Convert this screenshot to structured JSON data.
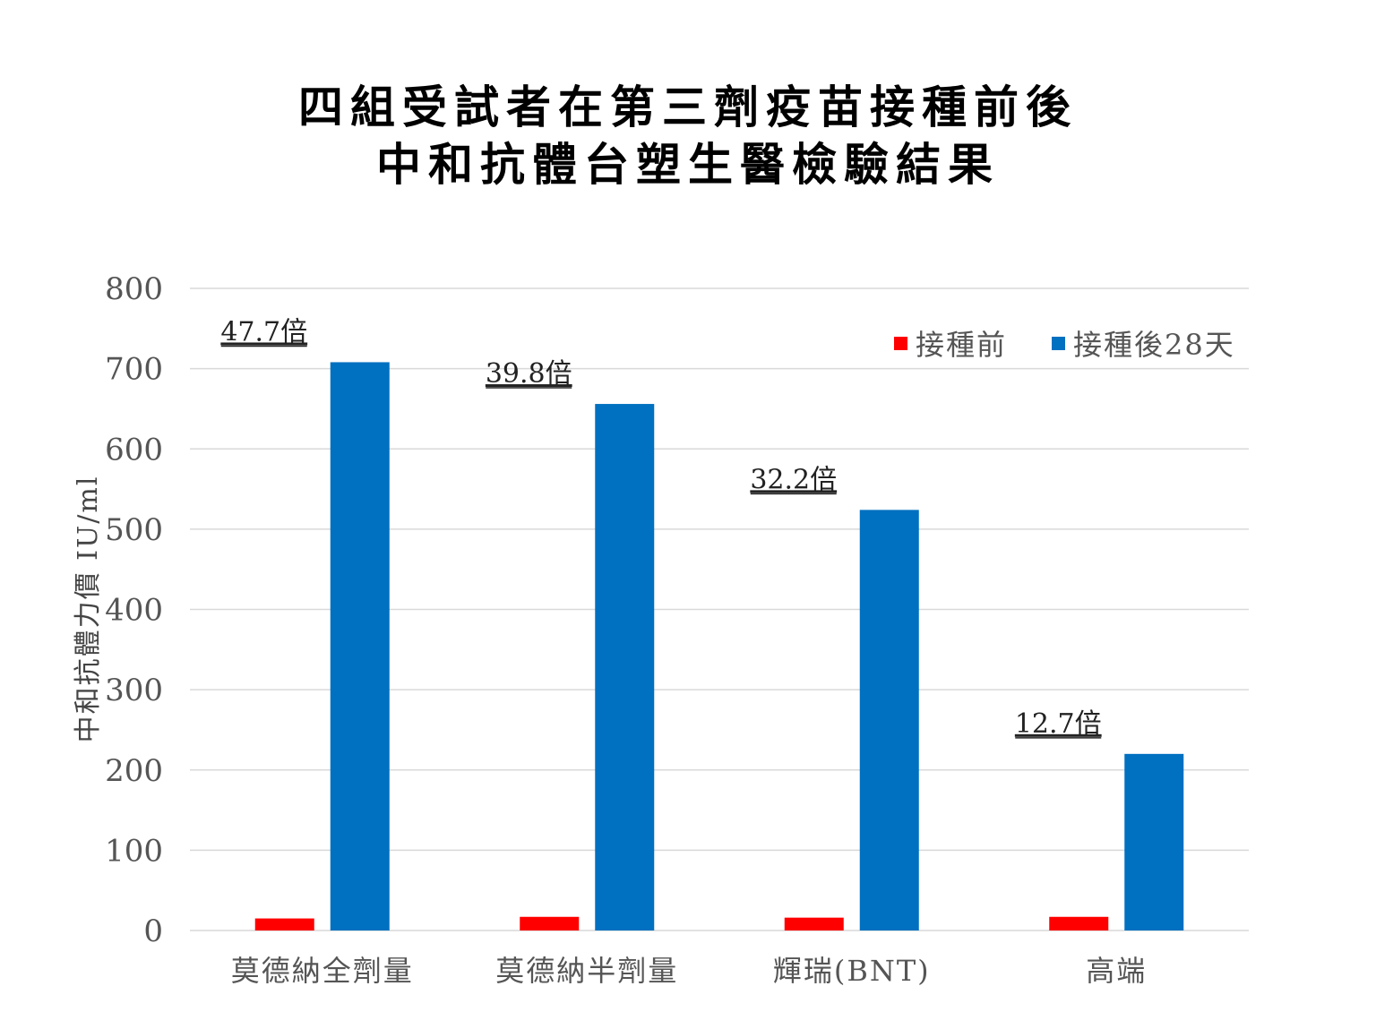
{
  "chart_data": {
    "type": "bar",
    "title_lines": [
      "四組受試者在第三劑疫苗接種前後",
      "中和抗體台塑生醫檢驗結果"
    ],
    "xlabel": "",
    "ylabel": "中和抗體力價 IU/ml",
    "ylim": [
      0,
      800
    ],
    "yticks": [
      0,
      100,
      200,
      300,
      400,
      500,
      600,
      700,
      800
    ],
    "grid": true,
    "legend_position": "top-right",
    "categories": [
      "莫德納全劑量",
      "莫德納半劑量",
      "輝瑞(BNT)",
      "高端"
    ],
    "series": [
      {
        "name": "接種前",
        "color": "#ff0000",
        "values": [
          15,
          17,
          16,
          17
        ]
      },
      {
        "name": "接種後28天",
        "color": "#0070c0",
        "values": [
          708,
          656,
          524,
          220
        ]
      }
    ],
    "annotations": [
      "47.7倍",
      "39.8倍",
      "32.2倍",
      "12.7倍"
    ]
  }
}
